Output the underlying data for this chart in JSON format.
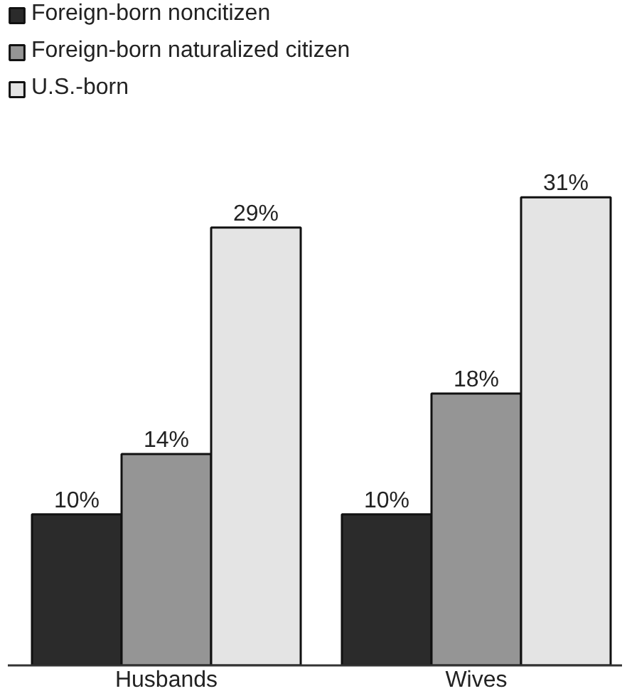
{
  "chart_data": {
    "type": "bar",
    "categories": [
      "Husbands",
      "Wives"
    ],
    "series": [
      {
        "name": "Foreign-born noncitizen",
        "color": "#2b2b2b",
        "values": [
          10,
          10
        ],
        "value_labels": [
          "10%",
          "10%"
        ]
      },
      {
        "name": "Foreign-born naturalized citizen",
        "color": "#959595",
        "values": [
          14,
          18
        ],
        "value_labels": [
          "14%",
          "18%"
        ]
      },
      {
        "name": "U.S.-born",
        "color": "#e4e4e4",
        "values": [
          29,
          31
        ],
        "value_labels": [
          "29%",
          "31%"
        ]
      }
    ],
    "legend": "top left",
    "grid": false
  }
}
